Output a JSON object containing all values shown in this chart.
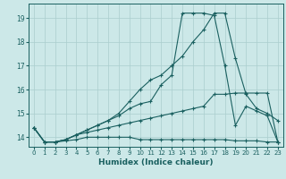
{
  "background_color": "#cce8e8",
  "grid_color": "#aacece",
  "line_color": "#1a6060",
  "xlabel": "Humidex (Indice chaleur)",
  "xlim": [
    -0.5,
    23.5
  ],
  "ylim": [
    13.6,
    19.6
  ],
  "yticks": [
    14,
    15,
    16,
    17,
    18,
    19
  ],
  "xticks": [
    0,
    1,
    2,
    3,
    4,
    5,
    6,
    7,
    8,
    9,
    10,
    11,
    12,
    13,
    14,
    15,
    16,
    17,
    18,
    19,
    20,
    21,
    22,
    23
  ],
  "lines": [
    {
      "x": [
        0,
        1,
        2,
        3,
        4,
        5,
        6,
        7,
        8,
        9,
        10,
        11,
        12,
        13,
        14,
        15,
        16,
        17,
        18,
        19,
        20,
        21,
        22,
        23
      ],
      "y": [
        14.4,
        13.8,
        13.8,
        13.85,
        13.9,
        14.0,
        14.0,
        14.0,
        14.0,
        14.0,
        13.9,
        13.9,
        13.9,
        13.9,
        13.9,
        13.9,
        13.9,
        13.9,
        13.9,
        13.85,
        13.85,
        13.85,
        13.8,
        13.8
      ]
    },
    {
      "x": [
        0,
        1,
        2,
        3,
        4,
        5,
        6,
        7,
        8,
        9,
        10,
        11,
        12,
        13,
        14,
        15,
        16,
        17,
        18,
        19,
        20,
        21,
        22,
        23
      ],
      "y": [
        14.4,
        13.8,
        13.8,
        13.9,
        14.1,
        14.2,
        14.3,
        14.4,
        14.5,
        14.6,
        14.7,
        14.8,
        14.9,
        15.0,
        15.1,
        15.2,
        15.3,
        15.8,
        15.8,
        15.85,
        15.85,
        15.85,
        15.85,
        13.8
      ]
    },
    {
      "x": [
        0,
        1,
        2,
        3,
        4,
        5,
        6,
        7,
        8,
        9,
        10,
        11,
        12,
        13,
        14,
        15,
        16,
        17,
        18,
        19,
        20,
        21,
        22,
        23
      ],
      "y": [
        14.4,
        13.8,
        13.8,
        13.9,
        14.1,
        14.3,
        14.5,
        14.7,
        15.0,
        15.5,
        16.0,
        16.4,
        16.6,
        17.0,
        17.4,
        18.0,
        18.5,
        19.2,
        19.2,
        17.3,
        15.8,
        15.2,
        15.0,
        14.7
      ]
    },
    {
      "x": [
        0,
        1,
        2,
        3,
        4,
        5,
        6,
        7,
        8,
        9,
        10,
        11,
        12,
        13,
        14,
        15,
        16,
        17,
        18,
        19,
        20,
        21,
        22,
        23
      ],
      "y": [
        14.4,
        13.8,
        13.8,
        13.9,
        14.1,
        14.3,
        14.5,
        14.7,
        14.9,
        15.2,
        15.4,
        15.5,
        16.2,
        16.6,
        19.2,
        19.2,
        19.2,
        19.1,
        17.0,
        14.5,
        15.3,
        15.1,
        14.9,
        13.8
      ]
    }
  ]
}
